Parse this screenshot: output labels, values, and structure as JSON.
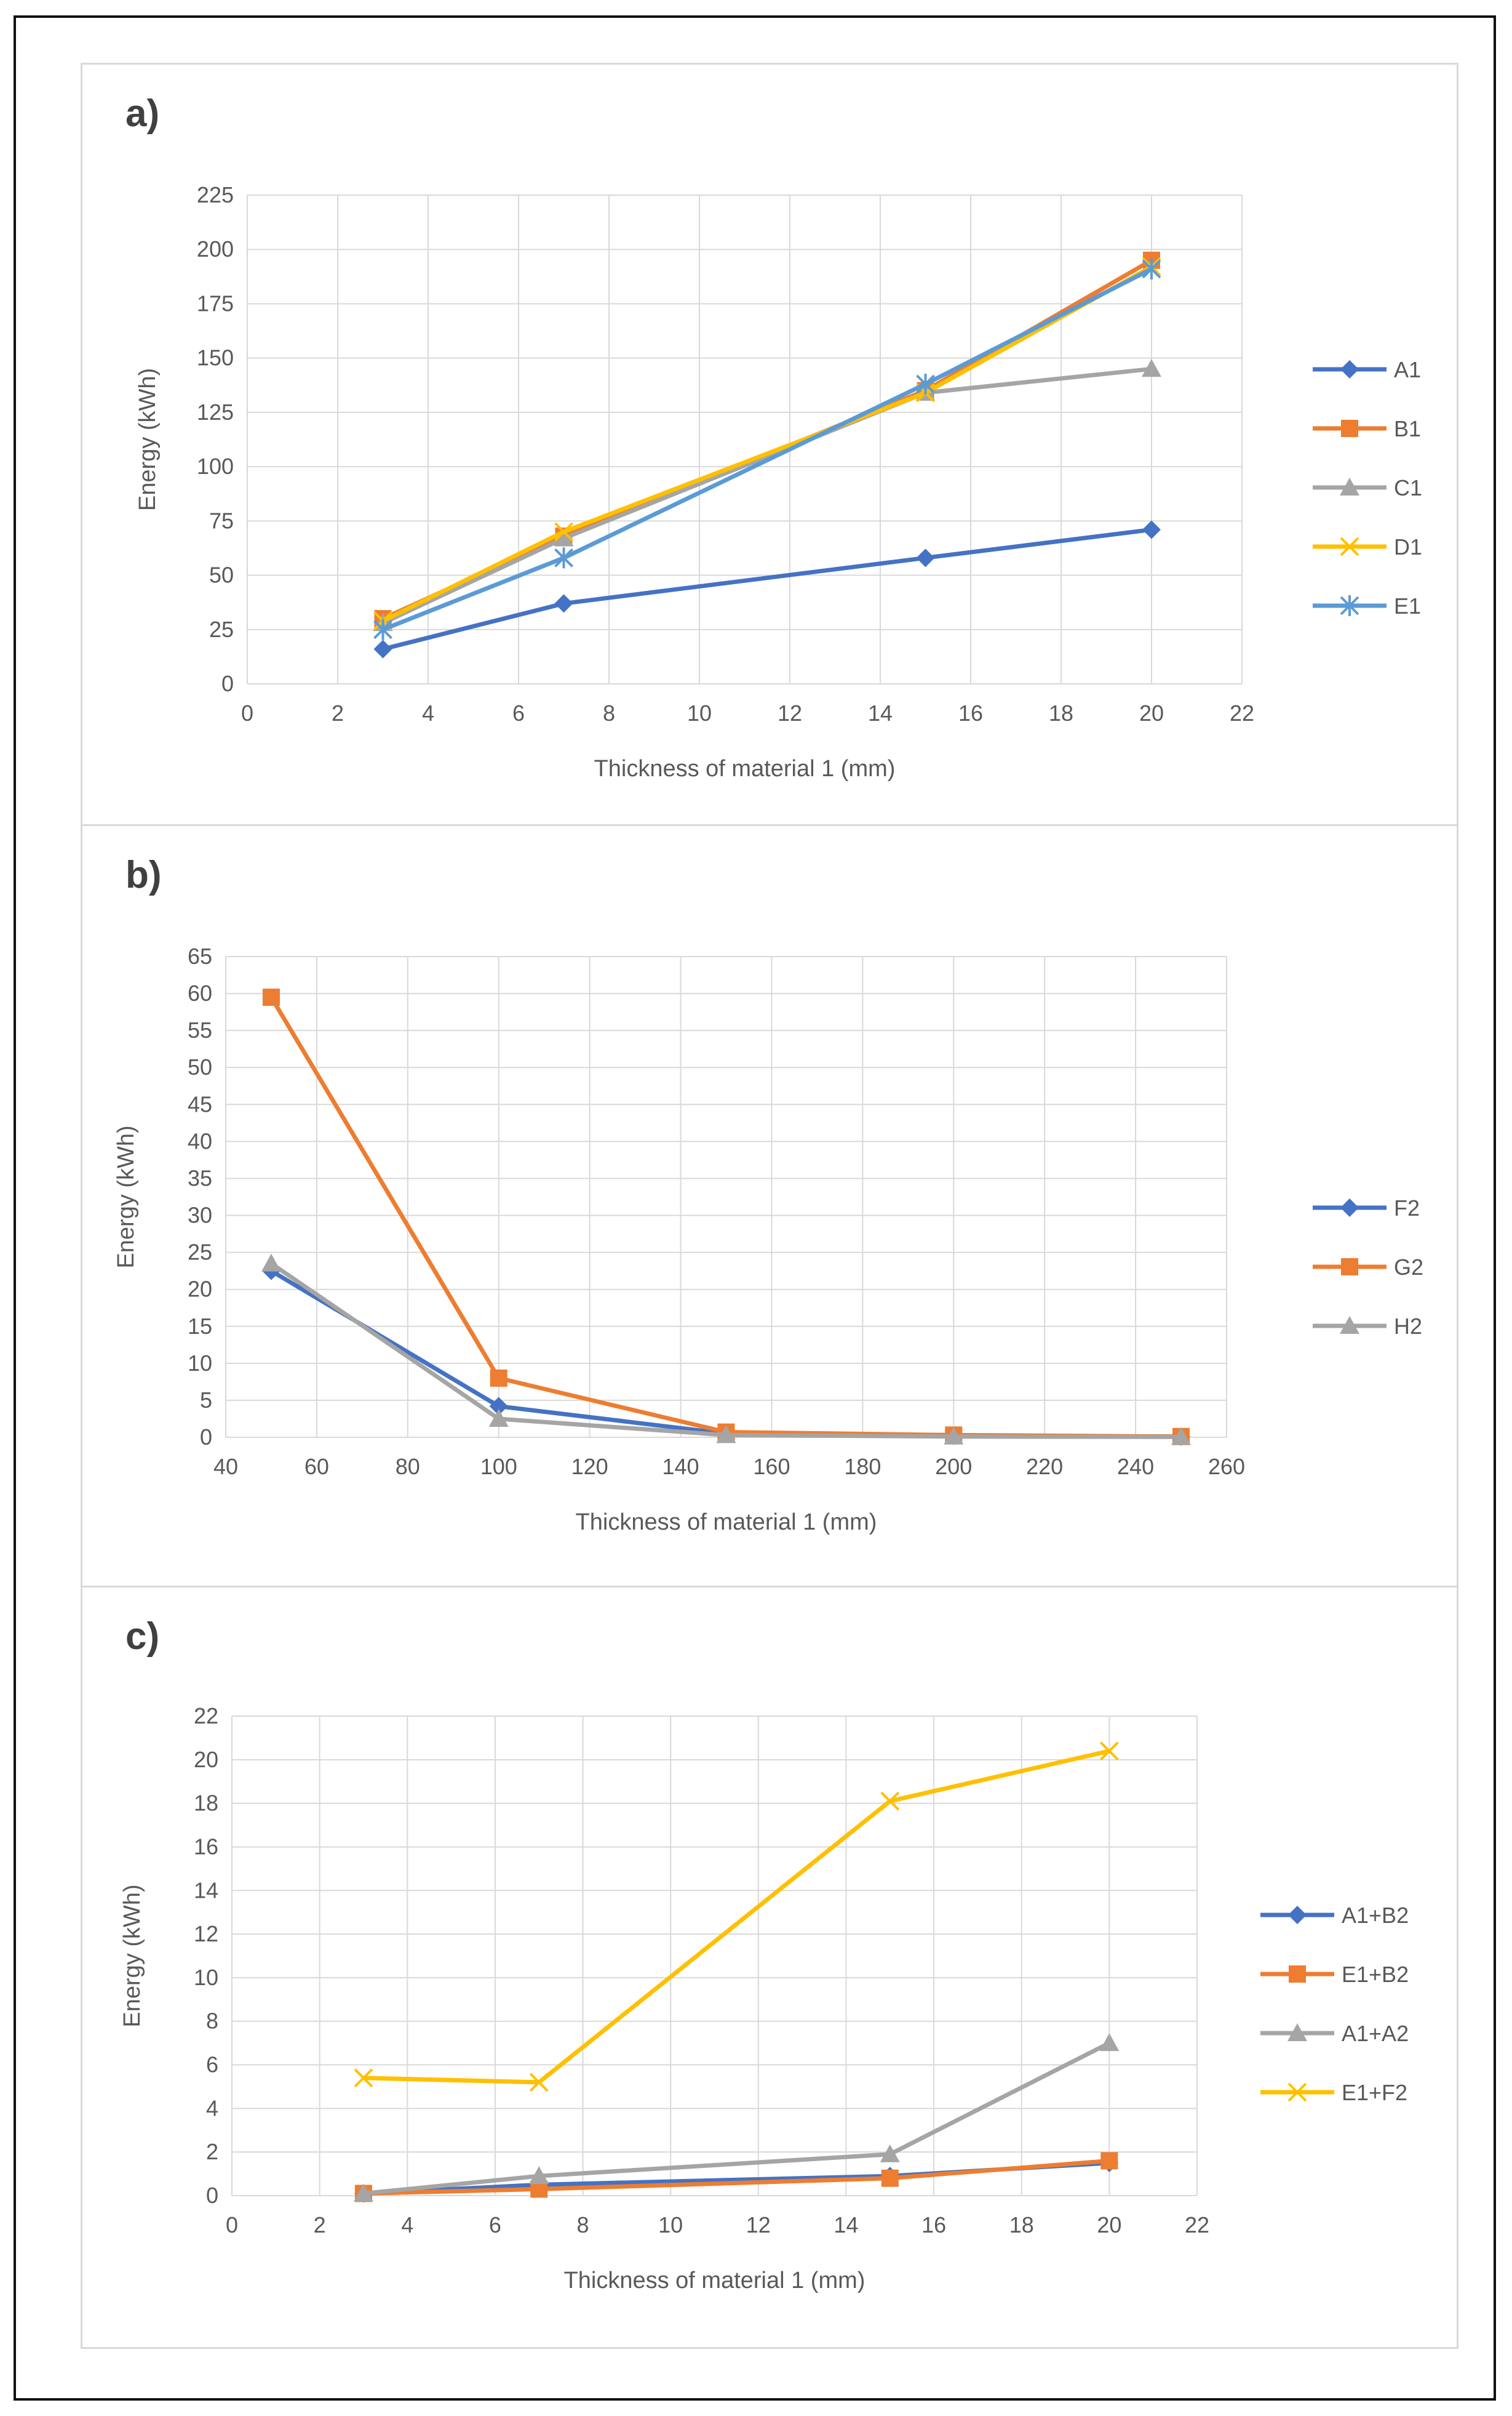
{
  "chart_data": [
    {
      "type": "line",
      "panel_label": "a)",
      "xlabel": "Thickness of material 1 (mm)",
      "ylabel": "Energy (kWh)",
      "xlim": [
        0,
        22
      ],
      "ylim": [
        0,
        225
      ],
      "xticks": [
        0,
        2,
        4,
        6,
        8,
        10,
        12,
        14,
        16,
        18,
        20,
        22
      ],
      "yticks": [
        0,
        25,
        50,
        75,
        100,
        125,
        150,
        175,
        200,
        225
      ],
      "grid": true,
      "legend": "right",
      "series": [
        {
          "name": "A1",
          "color": "#4472C4",
          "marker": "diamond",
          "x": [
            3,
            7,
            15,
            20
          ],
          "y": [
            16,
            37,
            58,
            71
          ]
        },
        {
          "name": "B1",
          "color": "#ED7D31",
          "marker": "square",
          "x": [
            3,
            7,
            15,
            20
          ],
          "y": [
            30,
            68,
            135,
            195
          ]
        },
        {
          "name": "C1",
          "color": "#A5A5A5",
          "marker": "triangle",
          "x": [
            3,
            7,
            15,
            20
          ],
          "y": [
            28,
            67,
            134,
            145
          ]
        },
        {
          "name": "D1",
          "color": "#FFC000",
          "marker": "x",
          "x": [
            3,
            7,
            15,
            20
          ],
          "y": [
            29,
            70,
            134,
            192
          ]
        },
        {
          "name": "E1",
          "color": "#5B9BD5",
          "marker": "star",
          "x": [
            3,
            7,
            15,
            20
          ],
          "y": [
            25,
            58,
            138,
            191
          ]
        }
      ]
    },
    {
      "type": "line",
      "panel_label": "b)",
      "xlabel": "Thickness of material 1  (mm)",
      "ylabel": "Energy (kWh)",
      "xlim": [
        40,
        260
      ],
      "ylim": [
        0,
        65
      ],
      "xticks": [
        40,
        60,
        80,
        100,
        120,
        140,
        160,
        180,
        200,
        220,
        240,
        260
      ],
      "yticks": [
        0,
        5,
        10,
        15,
        20,
        25,
        30,
        35,
        40,
        45,
        50,
        55,
        60,
        65
      ],
      "grid": true,
      "legend": "right",
      "series": [
        {
          "name": "F2",
          "color": "#4472C4",
          "marker": "diamond",
          "x": [
            50,
            100,
            150,
            200,
            250
          ],
          "y": [
            22.5,
            4.2,
            0.5,
            0.2,
            0.1
          ]
        },
        {
          "name": "G2",
          "color": "#ED7D31",
          "marker": "square",
          "x": [
            50,
            100,
            150,
            200,
            250
          ],
          "y": [
            59.5,
            8,
            0.7,
            0.3,
            0.1
          ]
        },
        {
          "name": "H2",
          "color": "#A5A5A5",
          "marker": "triangle",
          "x": [
            50,
            100,
            150,
            200,
            250
          ],
          "y": [
            23.5,
            2.5,
            0.3,
            0.1,
            0.05
          ]
        }
      ]
    },
    {
      "type": "line",
      "panel_label": "c)",
      "xlabel": "Thickness of material 1 (mm)",
      "ylabel": "Energy (kWh)",
      "xlim": [
        0,
        22
      ],
      "ylim": [
        0,
        22
      ],
      "xticks": [
        0,
        2,
        4,
        6,
        8,
        10,
        12,
        14,
        16,
        18,
        20,
        22
      ],
      "yticks": [
        0,
        2,
        4,
        6,
        8,
        10,
        12,
        14,
        16,
        18,
        20,
        22
      ],
      "grid": true,
      "legend": "right",
      "series": [
        {
          "name": "A1+B2",
          "color": "#4472C4",
          "marker": "diamond",
          "x": [
            3,
            7,
            15,
            20
          ],
          "y": [
            0.1,
            0.5,
            0.9,
            1.5
          ]
        },
        {
          "name": "E1+B2",
          "color": "#ED7D31",
          "marker": "square",
          "x": [
            3,
            7,
            15,
            20
          ],
          "y": [
            0.1,
            0.3,
            0.8,
            1.6
          ]
        },
        {
          "name": "A1+A2",
          "color": "#A5A5A5",
          "marker": "triangle",
          "x": [
            3,
            7,
            15,
            20
          ],
          "y": [
            0.1,
            0.9,
            1.9,
            7.0
          ]
        },
        {
          "name": "E1+F2",
          "color": "#FFC000",
          "marker": "x",
          "x": [
            3,
            7,
            15,
            20
          ],
          "y": [
            5.4,
            5.2,
            18.1,
            20.4
          ]
        }
      ]
    }
  ]
}
